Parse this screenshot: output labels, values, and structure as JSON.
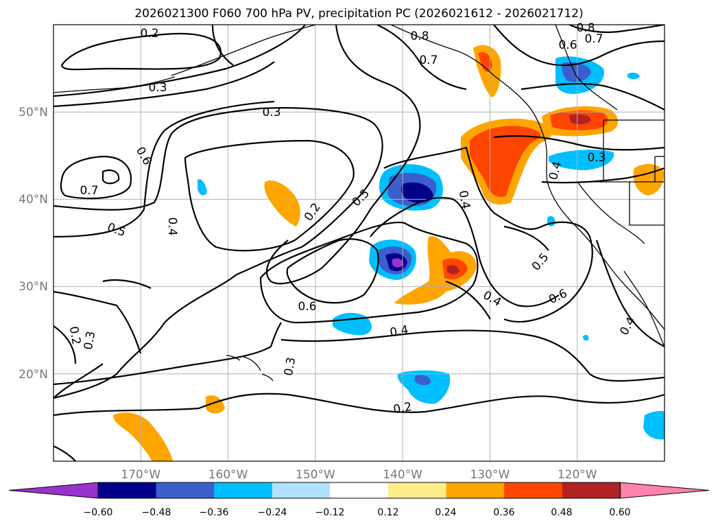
{
  "title": "2026021300 F060 700 hPa PV, precipitation PC (2026021612 - 2026021712)",
  "map": {
    "lon_range": [
      -180,
      -110
    ],
    "lat_range": [
      10,
      60
    ],
    "lat_ticks": [
      "50°N",
      "40°N",
      "30°N",
      "20°N"
    ],
    "lon_ticks": [
      "170°W",
      "160°W",
      "150°W",
      "140°W",
      "130°W",
      "120°W"
    ],
    "gridlines": true
  },
  "contour_labels": [
    "0.2",
    "0.3",
    "0.8",
    "0.7",
    "0.6",
    "0.8",
    "0.7",
    "0.3",
    "0.6",
    "0.7",
    "0.4",
    "0.3",
    "0.5",
    "0.4",
    "0.2",
    "0.5",
    "0.4",
    "0.6",
    "0.4",
    "0.5",
    "0.6",
    "0.2",
    "0.3",
    "0.3",
    "0.4",
    "0.2",
    "0.4"
  ],
  "colorbar": {
    "ticks": [
      "−0.60",
      "−0.48",
      "−0.36",
      "−0.24",
      "−0.12",
      "0.12",
      "0.24",
      "0.36",
      "0.48",
      "0.60"
    ],
    "colors": [
      "#9a32cd",
      "#00008b",
      "#3a5fcd",
      "#00bfff",
      "#b0e2ff",
      "#ffffff",
      "#ffec8b",
      "#ffa500",
      "#ff4500",
      "#b22222",
      "#ff82ab"
    ]
  }
}
